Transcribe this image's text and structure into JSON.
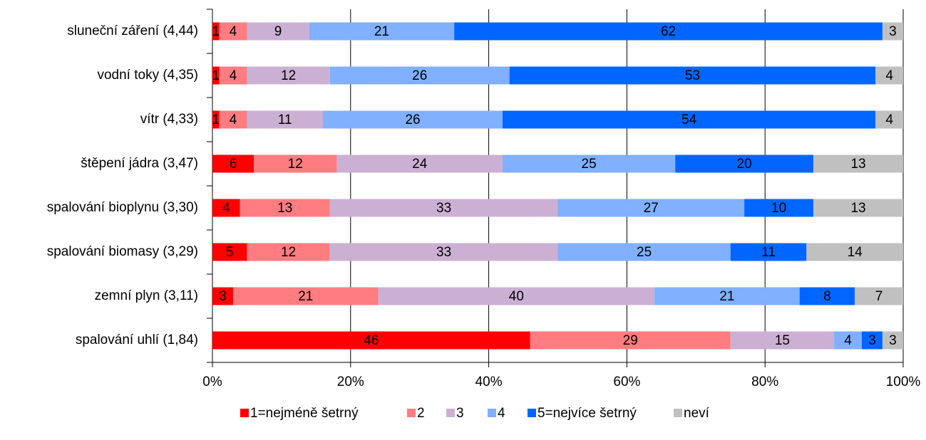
{
  "chart_data": {
    "type": "stacked_bar_horizontal",
    "categories": [
      "sluneční záření (4,44)",
      "vodní toky (4,35)",
      "vítr (4,33)",
      "štěpení jádra (3,47)",
      "spalování bioplynu (3,30)",
      "spalování biomasy (3,29)",
      "zemní plyn (3,11)",
      "spalování uhlí (1,84)"
    ],
    "series": [
      {
        "name": "1=nejméně šetrný",
        "color": "#ff0000",
        "values": [
          1,
          1,
          1,
          6,
          4,
          5,
          3,
          46
        ]
      },
      {
        "name": "2",
        "color": "#ff7c80",
        "values": [
          4,
          4,
          4,
          12,
          13,
          12,
          21,
          29
        ]
      },
      {
        "name": "3",
        "color": "#ccb0d4",
        "values": [
          9,
          12,
          11,
          24,
          33,
          33,
          40,
          15
        ]
      },
      {
        "name": "4",
        "color": "#80b0ff",
        "values": [
          21,
          26,
          26,
          25,
          27,
          25,
          21,
          4
        ]
      },
      {
        "name": "5=nejvíce šetrný",
        "color": "#0066ff",
        "values": [
          62,
          53,
          54,
          20,
          10,
          11,
          8,
          3
        ]
      },
      {
        "name": "neví",
        "color": "#c0c0c0",
        "values": [
          3,
          4,
          4,
          13,
          13,
          14,
          7,
          3
        ]
      }
    ],
    "xlim": [
      0,
      100
    ],
    "xticks": [
      {
        "value": 0,
        "label": "0%"
      },
      {
        "value": 20,
        "label": "20%"
      },
      {
        "value": 40,
        "label": "40%"
      },
      {
        "value": 60,
        "label": "60%"
      },
      {
        "value": 80,
        "label": "80%"
      },
      {
        "value": 100,
        "label": "100%"
      }
    ],
    "grid": true,
    "legend": "bottom"
  }
}
